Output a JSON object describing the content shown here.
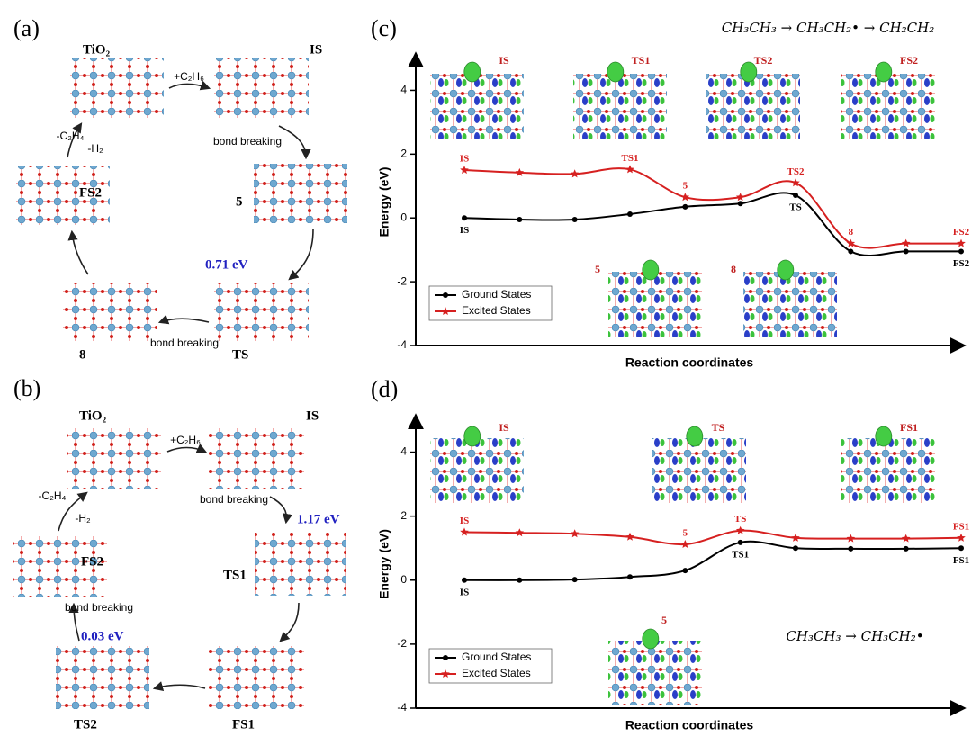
{
  "panel_a": {
    "label": "(a)",
    "nodes": [
      {
        "label": "TiO₂"
      },
      {
        "label": "IS"
      },
      {
        "label": "5"
      },
      {
        "label": "TS",
        "energy": "0.71 eV"
      },
      {
        "label": "8"
      },
      {
        "label": "FS2"
      }
    ],
    "edges": [
      {
        "label": "+C₂H₆"
      },
      {
        "label": "bond breaking"
      },
      {
        "label": "bond breaking"
      },
      {
        "label": "-C₂H₄"
      },
      {
        "label": "-H₂"
      }
    ]
  },
  "panel_b": {
    "label": "(b)",
    "nodes": [
      {
        "label": "TiO₂"
      },
      {
        "label": "IS"
      },
      {
        "label": "TS1",
        "energy": "1.17 eV"
      },
      {
        "label": "FS1"
      },
      {
        "label": "TS2",
        "energy": "0.03 eV"
      },
      {
        "label": "FS2"
      }
    ],
    "edges": [
      {
        "label": "+C₂H₆"
      },
      {
        "label": "bond breaking"
      },
      {
        "label": "bond breaking"
      },
      {
        "label": "-C₂H₄"
      },
      {
        "label": "-H₂"
      }
    ]
  },
  "chart_data": [
    {
      "type": "line",
      "label": "(c)",
      "equation": "CH₃CH₃ → CH₃CH₂• → CH₂CH₂",
      "xlabel": "Reaction coordinates",
      "ylabel": "Energy (eV)",
      "categories": [
        null,
        null,
        null,
        null,
        null,
        null,
        null,
        null,
        null,
        null
      ],
      "ylim": [
        -4,
        5
      ],
      "yticks": [
        -4,
        -2,
        0,
        2,
        4
      ],
      "legend": "lower left",
      "series": [
        {
          "name": "Ground States",
          "color": "#000000",
          "marker": "circle",
          "values": [
            0,
            -0.05,
            -0.05,
            0.12,
            0.35,
            0.45,
            0.71,
            -1.05,
            -1.05,
            -1.05
          ],
          "point_labels": [
            "IS",
            null,
            null,
            null,
            null,
            null,
            "TS",
            null,
            null,
            "FS2"
          ]
        },
        {
          "name": "Excited States",
          "color": "#d62020",
          "marker": "star",
          "values": [
            1.5,
            1.42,
            1.38,
            1.52,
            0.65,
            0.65,
            1.1,
            -0.8,
            -0.8,
            -0.8
          ],
          "point_labels": [
            "IS",
            null,
            null,
            "TS1",
            "5",
            null,
            "TS2",
            "8",
            null,
            "FS2"
          ]
        }
      ],
      "insets": [
        {
          "label": "IS"
        },
        {
          "label": "TS1"
        },
        {
          "label": "TS2"
        },
        {
          "label": "FS2"
        },
        {
          "label": "5"
        },
        {
          "label": "8"
        }
      ]
    },
    {
      "type": "line",
      "label": "(d)",
      "equation": "CH₃CH₃ → CH₃CH₂•",
      "xlabel": "Reaction coordinates",
      "ylabel": "Energy (eV)",
      "categories": [
        null,
        null,
        null,
        null,
        null,
        null,
        null,
        null,
        null,
        null
      ],
      "ylim": [
        -4,
        5
      ],
      "yticks": [
        -4,
        -2,
        0,
        2,
        4
      ],
      "legend": "lower left",
      "series": [
        {
          "name": "Ground States",
          "color": "#000000",
          "marker": "circle",
          "values": [
            0,
            0,
            0.02,
            0.1,
            0.3,
            1.18,
            1.0,
            0.98,
            0.98,
            1.0
          ],
          "point_labels": [
            "IS",
            null,
            null,
            null,
            null,
            "TS1",
            null,
            null,
            null,
            "FS1"
          ]
        },
        {
          "name": "Excited States",
          "color": "#d62020",
          "marker": "star",
          "values": [
            1.5,
            1.48,
            1.45,
            1.35,
            1.12,
            1.55,
            1.32,
            1.3,
            1.3,
            1.32
          ],
          "point_labels": [
            "IS",
            null,
            null,
            null,
            "5",
            "TS",
            null,
            null,
            null,
            "FS1"
          ]
        }
      ],
      "insets": [
        {
          "label": "IS"
        },
        {
          "label": "TS"
        },
        {
          "label": "FS1"
        },
        {
          "label": "5"
        }
      ]
    }
  ]
}
